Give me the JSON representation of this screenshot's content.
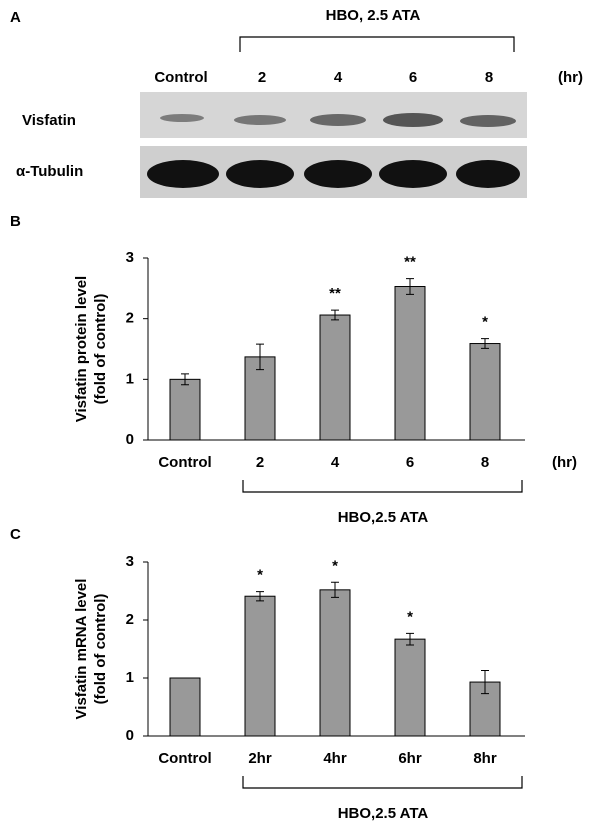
{
  "blot": {
    "panel_label": "A",
    "header": "HBO, 2.5 ATA",
    "lanes": [
      "Control",
      "2",
      "4",
      "6",
      "8"
    ],
    "unit": "(hr)",
    "rows": [
      "Visfatin",
      "α-Tubulin"
    ]
  },
  "chart_data": [
    {
      "type": "bar",
      "panel_label": "B",
      "y_label": [
        "Visfatin protein level",
        "(fold of control)"
      ],
      "categories": [
        "Control",
        "2",
        "4",
        "6",
        "8"
      ],
      "values": [
        1.0,
        1.37,
        2.06,
        2.53,
        1.59
      ],
      "errors": [
        0.09,
        0.21,
        0.08,
        0.13,
        0.08
      ],
      "annotations": [
        null,
        null,
        "**",
        "**",
        "*"
      ],
      "unit": "(hr)",
      "group_label": "HBO,2.5 ATA",
      "color": "#999999",
      "ylim": [
        0,
        3
      ],
      "yticks": [
        0,
        1,
        2,
        3
      ]
    },
    {
      "type": "bar",
      "panel_label": "C",
      "y_label": [
        "Visfatin mRNA level",
        "(fold of control)"
      ],
      "categories": [
        "Control",
        "2hr",
        "4hr",
        "6hr",
        "8hr"
      ],
      "values": [
        1.0,
        2.41,
        2.52,
        1.67,
        0.93
      ],
      "errors": [
        0,
        0.08,
        0.13,
        0.1,
        0.2
      ],
      "annotations": [
        null,
        "*",
        "*",
        "*",
        null
      ],
      "group_label": "HBO,2.5 ATA",
      "color": "#999999",
      "ylim": [
        0,
        3
      ],
      "yticks": [
        0,
        1,
        2,
        3
      ]
    }
  ]
}
